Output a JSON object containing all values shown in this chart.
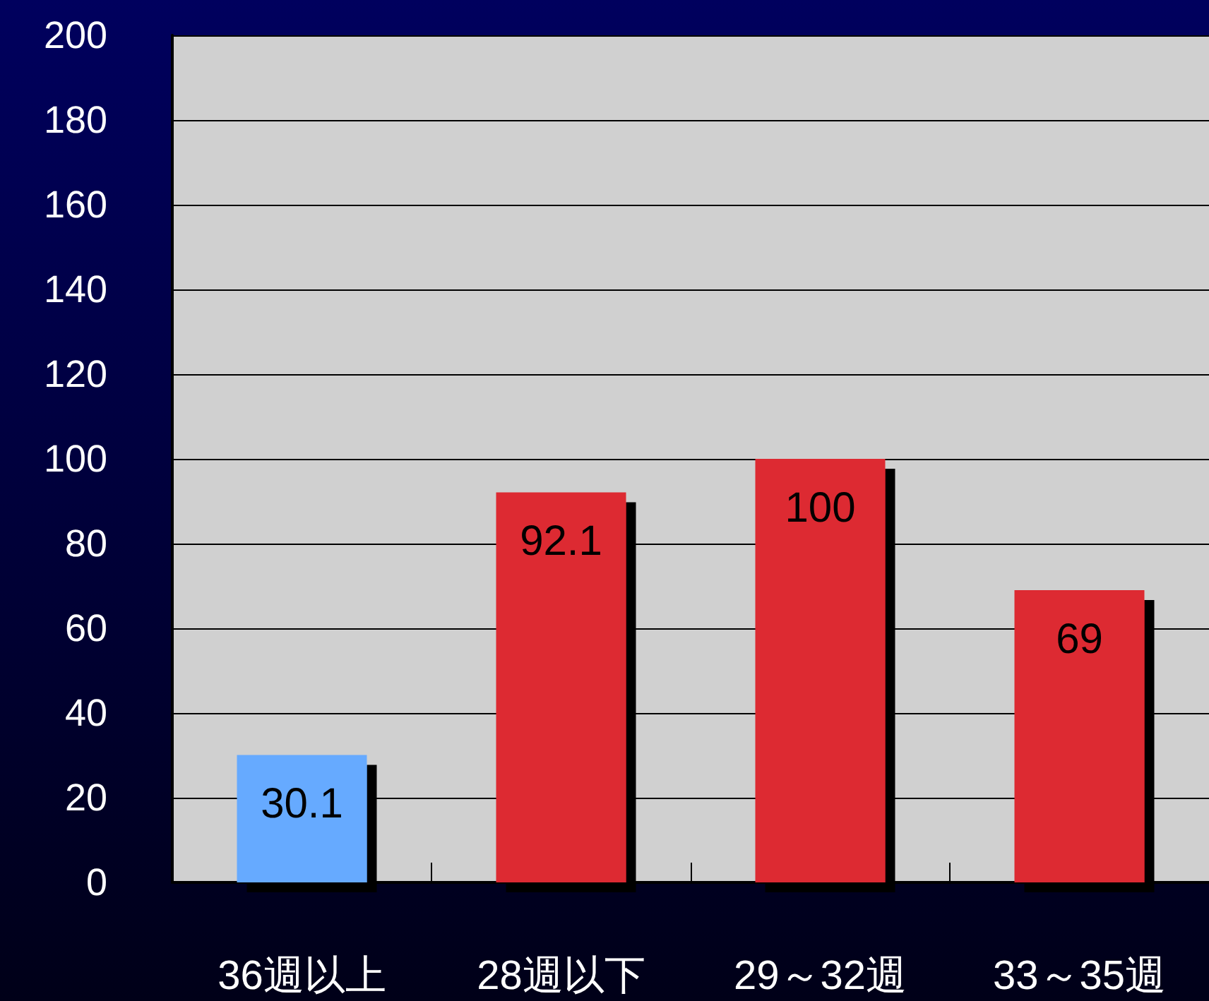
{
  "chart_data": {
    "type": "bar",
    "categories": [
      "36週以上",
      "28週以下",
      "29～32週",
      "33～35週"
    ],
    "values": [
      30.1,
      92.1,
      100,
      69
    ],
    "colors": [
      "#66aaff",
      "#dd2c32",
      "#dd2c32",
      "#dd2c32"
    ],
    "ylim": [
      0,
      200
    ],
    "yticks": [
      0,
      20,
      40,
      60,
      80,
      100,
      120,
      140,
      160,
      180,
      200
    ],
    "grid": "y",
    "data_labels": true
  }
}
